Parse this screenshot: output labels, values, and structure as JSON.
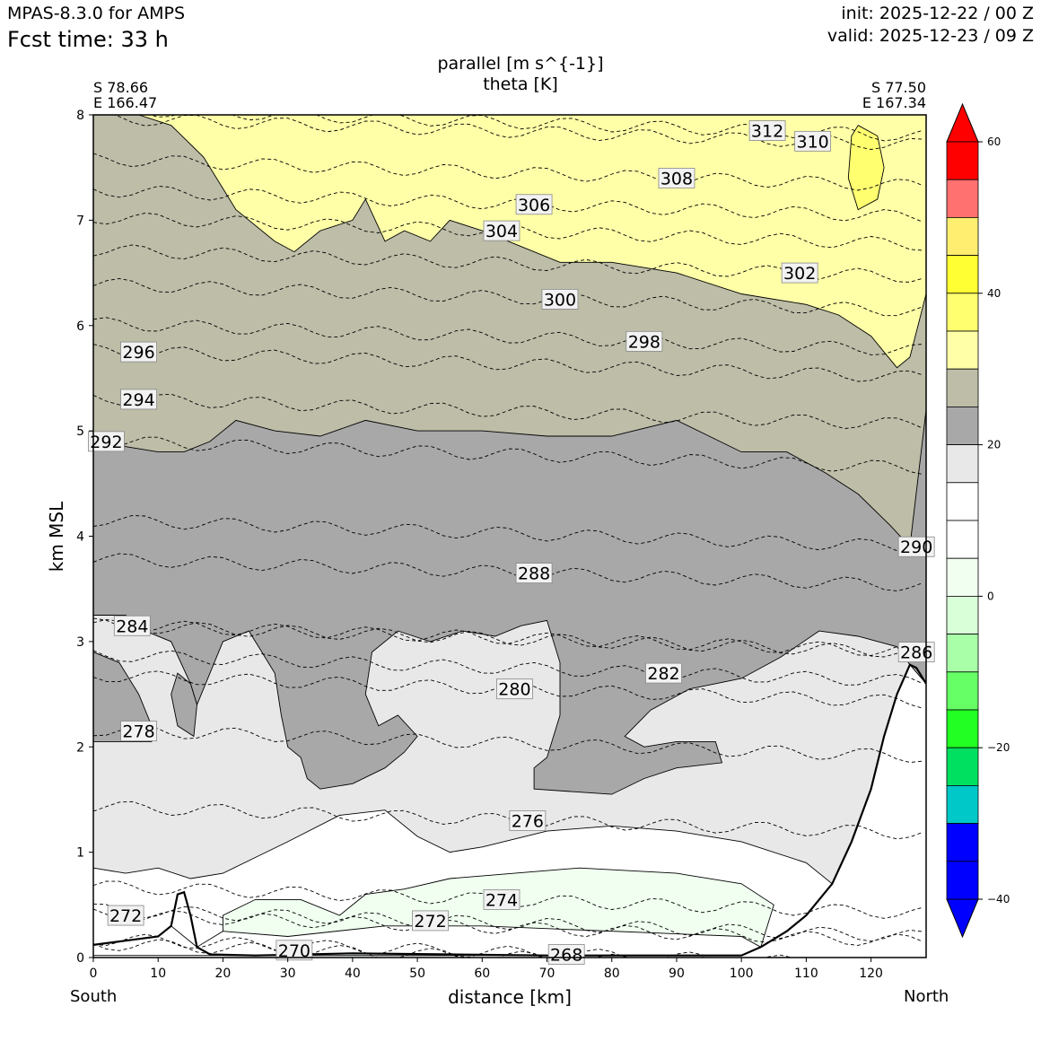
{
  "header": {
    "model": "MPAS-8.3.0 for AMPS",
    "fcst_time": "Fcst time:   33 h",
    "init": "init: 2025-12-22 / 00 Z",
    "valid": "valid: 2025-12-23 / 09 Z"
  },
  "endpoints": {
    "left_lat": "S 78.66",
    "left_lon": "E 166.47",
    "right_lat": "S 77.50",
    "right_lon": "E 167.34",
    "left_dir": "South",
    "right_dir": "North"
  },
  "chart_data": {
    "type": "contour-cross-section",
    "title": "parallel [m s^{-1}]",
    "subtitle": "theta [K]",
    "xlabel": "distance [km]",
    "ylabel": "km MSL",
    "xlim": [
      0,
      128.5
    ],
    "ylim": [
      0,
      8
    ],
    "x_ticks": [
      0,
      10,
      20,
      30,
      40,
      50,
      60,
      70,
      80,
      90,
      100,
      110,
      120
    ],
    "y_ticks": [
      0,
      1,
      2,
      3,
      4,
      5,
      6,
      7,
      8
    ],
    "terrain": [
      [
        0,
        0.12
      ],
      [
        5,
        0.16
      ],
      [
        10,
        0.2
      ],
      [
        12,
        0.3
      ],
      [
        13,
        0.6
      ],
      [
        14,
        0.62
      ],
      [
        15,
        0.4
      ],
      [
        16,
        0.1
      ],
      [
        18,
        0.03
      ],
      [
        25,
        0.02
      ],
      [
        40,
        0.04
      ],
      [
        55,
        0.03
      ],
      [
        70,
        0.02
      ],
      [
        90,
        0.02
      ],
      [
        100,
        0.02
      ],
      [
        103,
        0.1
      ],
      [
        107,
        0.25
      ],
      [
        110,
        0.4
      ],
      [
        114,
        0.7
      ],
      [
        117,
        1.1
      ],
      [
        120,
        1.6
      ],
      [
        122,
        2.1
      ],
      [
        124,
        2.5
      ],
      [
        126,
        2.78
      ],
      [
        127,
        2.75
      ],
      [
        128.5,
        2.6
      ]
    ],
    "colorbar": {
      "ticks": [
        60,
        40,
        20,
        0,
        -20,
        -40
      ],
      "levels": [
        {
          "color": "#ff0000"
        },
        {
          "color": "#ff7070"
        },
        {
          "color": "#ffee70"
        },
        {
          "color": "#ffff33"
        },
        {
          "color": "#ffff70"
        },
        {
          "color": "#ffffa8"
        },
        {
          "color": "#bdbda8"
        },
        {
          "color": "#a8a8a8"
        },
        {
          "color": "#e8e8e8"
        },
        {
          "color": "#ffffff"
        },
        {
          "color": "#ffffff"
        },
        {
          "color": "#f0fff0"
        },
        {
          "color": "#d8ffd8"
        },
        {
          "color": "#a8ffa8"
        },
        {
          "color": "#66ff66"
        },
        {
          "color": "#22ff22"
        },
        {
          "color": "#00e060"
        },
        {
          "color": "#00c8c8"
        },
        {
          "color": "#0000ff"
        },
        {
          "color": "#0000ff"
        }
      ],
      "over_color": "#ff0000",
      "under_color": "#0000ff"
    },
    "wind_regions": [
      {
        "color": "#bdbda8",
        "points": [
          [
            0,
            8
          ],
          [
            128.5,
            8
          ],
          [
            128.5,
            3
          ],
          [
            0,
            3
          ]
        ]
      },
      {
        "color": "#ffffa8",
        "points": [
          [
            7,
            8
          ],
          [
            128.5,
            8
          ],
          [
            128.5,
            6.3
          ],
          [
            126,
            5.7
          ],
          [
            124,
            5.6
          ],
          [
            120,
            5.9
          ],
          [
            115,
            6.1
          ],
          [
            110,
            6.2
          ],
          [
            100,
            6.3
          ],
          [
            90,
            6.5
          ],
          [
            80,
            6.6
          ],
          [
            72,
            6.6
          ],
          [
            60,
            6.9
          ],
          [
            55,
            7.0
          ],
          [
            52,
            6.8
          ],
          [
            48,
            6.9
          ],
          [
            45,
            6.8
          ],
          [
            42,
            7.2
          ],
          [
            40,
            7.0
          ],
          [
            35,
            6.9
          ],
          [
            31,
            6.7
          ],
          [
            28,
            6.8
          ],
          [
            22,
            7.1
          ],
          [
            17,
            7.6
          ],
          [
            12,
            7.9
          ]
        ]
      },
      {
        "color": "#ffff70",
        "points": [
          [
            118,
            7.9
          ],
          [
            121,
            7.8
          ],
          [
            122,
            7.5
          ],
          [
            121,
            7.2
          ],
          [
            118,
            7.1
          ],
          [
            116.5,
            7.4
          ],
          [
            117,
            7.8
          ]
        ]
      },
      {
        "color": "#a8a8a8",
        "points": [
          [
            0,
            4.95
          ],
          [
            5,
            4.85
          ],
          [
            10,
            4.8
          ],
          [
            14,
            4.8
          ],
          [
            18,
            4.9
          ],
          [
            22,
            5.1
          ],
          [
            28,
            5.0
          ],
          [
            35,
            4.95
          ],
          [
            42,
            5.1
          ],
          [
            50,
            5.0
          ],
          [
            60,
            5.0
          ],
          [
            70,
            4.95
          ],
          [
            80,
            4.95
          ],
          [
            90,
            5.1
          ],
          [
            100,
            4.8
          ],
          [
            107,
            4.8
          ],
          [
            113,
            4.6
          ],
          [
            118,
            4.4
          ],
          [
            123,
            4.1
          ],
          [
            126,
            3.9
          ],
          [
            128.5,
            5.2
          ],
          [
            128.5,
            2.6
          ],
          [
            126,
            2.78
          ],
          [
            124,
            2.5
          ],
          [
            122,
            2.1
          ],
          [
            120,
            1.6
          ],
          [
            117,
            1.1
          ],
          [
            114,
            0.7
          ],
          [
            110,
            0.4
          ],
          [
            107,
            0.25
          ],
          [
            103,
            0.1
          ],
          [
            0,
            0.1
          ]
        ]
      },
      {
        "color": "#e8e8e8",
        "points": [
          [
            0,
            3.25
          ],
          [
            5,
            3.25
          ],
          [
            8,
            3.1
          ],
          [
            12,
            3.0
          ],
          [
            15,
            2.6
          ],
          [
            16,
            2.4
          ],
          [
            18,
            2.7
          ],
          [
            20,
            3.0
          ],
          [
            24,
            3.1
          ],
          [
            26,
            2.9
          ],
          [
            28,
            2.7
          ],
          [
            29,
            2.3
          ],
          [
            30,
            2.0
          ],
          [
            32,
            1.9
          ],
          [
            33,
            1.7
          ],
          [
            35,
            1.6
          ],
          [
            40,
            1.65
          ],
          [
            45,
            1.8
          ],
          [
            48,
            1.95
          ],
          [
            50,
            2.1
          ],
          [
            47,
            2.3
          ],
          [
            44,
            2.2
          ],
          [
            42,
            2.5
          ],
          [
            43,
            2.9
          ],
          [
            47,
            3.1
          ],
          [
            52,
            3.0
          ],
          [
            57,
            3.1
          ],
          [
            62,
            3.05
          ],
          [
            66,
            3.15
          ],
          [
            70,
            3.2
          ],
          [
            72,
            2.8
          ],
          [
            72,
            2.3
          ],
          [
            70,
            1.9
          ],
          [
            68,
            1.8
          ],
          [
            68,
            1.6
          ],
          [
            80,
            1.55
          ],
          [
            85,
            1.7
          ],
          [
            90,
            1.8
          ],
          [
            97,
            1.85
          ],
          [
            96,
            2.05
          ],
          [
            90,
            2.05
          ],
          [
            85,
            2.0
          ],
          [
            82,
            2.1
          ],
          [
            86,
            2.35
          ],
          [
            92,
            2.55
          ],
          [
            100,
            2.65
          ],
          [
            106,
            2.85
          ],
          [
            112,
            3.1
          ],
          [
            118,
            3.05
          ],
          [
            124,
            2.95
          ],
          [
            126,
            2.78
          ],
          [
            124,
            2.5
          ],
          [
            122,
            2.1
          ],
          [
            120,
            1.6
          ],
          [
            117,
            1.1
          ],
          [
            114,
            0.7
          ],
          [
            110,
            0.4
          ],
          [
            107,
            0.25
          ],
          [
            103,
            0.1
          ],
          [
            0,
            0.1
          ]
        ]
      },
      {
        "color": "#a8a8a8",
        "points": [
          [
            0,
            2.9
          ],
          [
            4,
            2.8
          ],
          [
            7,
            2.5
          ],
          [
            9,
            2.2
          ],
          [
            9,
            2.05
          ],
          [
            0,
            2.05
          ]
        ]
      },
      {
        "color": "#a8a8a8",
        "points": [
          [
            15,
            2.6
          ],
          [
            16,
            2.4
          ],
          [
            15.5,
            2.1
          ],
          [
            13,
            2.2
          ],
          [
            12,
            2.5
          ],
          [
            13,
            2.7
          ]
        ]
      },
      {
        "color": "#ffffff",
        "points": [
          [
            0,
            0.85
          ],
          [
            5,
            0.8
          ],
          [
            10,
            0.85
          ],
          [
            15,
            0.75
          ],
          [
            20,
            0.8
          ],
          [
            25,
            0.95
          ],
          [
            30,
            1.1
          ],
          [
            38,
            1.35
          ],
          [
            45,
            1.4
          ],
          [
            50,
            1.15
          ],
          [
            55,
            1.0
          ],
          [
            60,
            1.05
          ],
          [
            70,
            1.2
          ],
          [
            80,
            1.25
          ],
          [
            90,
            1.2
          ],
          [
            100,
            1.1
          ],
          [
            110,
            0.9
          ],
          [
            114,
            0.7
          ],
          [
            110,
            0.4
          ],
          [
            107,
            0.25
          ],
          [
            103,
            0.1
          ],
          [
            100,
            0.02
          ],
          [
            0,
            0.02
          ]
        ]
      },
      {
        "color": "#f0fff0",
        "points": [
          [
            20,
            0.4
          ],
          [
            25,
            0.55
          ],
          [
            32,
            0.55
          ],
          [
            38,
            0.4
          ],
          [
            42,
            0.6
          ],
          [
            48,
            0.65
          ],
          [
            55,
            0.75
          ],
          [
            65,
            0.8
          ],
          [
            75,
            0.85
          ],
          [
            90,
            0.8
          ],
          [
            100,
            0.7
          ],
          [
            105,
            0.5
          ],
          [
            103,
            0.1
          ],
          [
            100,
            0.02
          ],
          [
            20,
            0.02
          ]
        ]
      },
      {
        "color": "#ffffff",
        "points": [
          [
            16,
            0.1
          ],
          [
            18,
            0.03
          ],
          [
            25,
            0.02
          ],
          [
            40,
            0.04
          ],
          [
            55,
            0.03
          ],
          [
            70,
            0.02
          ],
          [
            90,
            0.02
          ],
          [
            100,
            0.02
          ],
          [
            103,
            0.1
          ],
          [
            100,
            0.2
          ],
          [
            60,
            0.3
          ],
          [
            45,
            0.3
          ],
          [
            30,
            0.2
          ],
          [
            20,
            0.25
          ]
        ]
      },
      {
        "color": "#ffffff",
        "points": [
          [
            12,
            0.3
          ],
          [
            13,
            0.6
          ],
          [
            14,
            0.62
          ],
          [
            15,
            0.4
          ],
          [
            16,
            0.1
          ]
        ]
      }
    ],
    "theta_contours": [
      {
        "value": "312",
        "label_x": 104,
        "label_y": 7.85
      },
      {
        "value": "310",
        "label_x": 111,
        "label_y": 7.75
      },
      {
        "value": "308",
        "label_x": 90,
        "label_y": 7.4
      },
      {
        "value": "306",
        "label_x": 68,
        "label_y": 7.15
      },
      {
        "value": "304",
        "label_x": 63,
        "label_y": 6.9
      },
      {
        "value": "302",
        "label_x": 109,
        "label_y": 6.5
      },
      {
        "value": "300",
        "label_x": 72,
        "label_y": 6.25
      },
      {
        "value": "298",
        "label_x": 85,
        "label_y": 5.85
      },
      {
        "value": "296",
        "label_x": 7,
        "label_y": 5.75
      },
      {
        "value": "294",
        "label_x": 7,
        "label_y": 5.3
      },
      {
        "value": "292",
        "label_x": 2,
        "label_y": 4.9
      },
      {
        "value": "290",
        "label_x": 127,
        "label_y": 3.9
      },
      {
        "value": "288",
        "label_x": 68,
        "label_y": 3.65
      },
      {
        "value": "286",
        "label_x": 127,
        "label_y": 2.9
      },
      {
        "value": "284",
        "label_x": 6,
        "label_y": 3.15
      },
      {
        "value": "282",
        "label_x": 88,
        "label_y": 2.7
      },
      {
        "value": "280",
        "label_x": 65,
        "label_y": 2.55
      },
      {
        "value": "278",
        "label_x": 7,
        "label_y": 2.15
      },
      {
        "value": "276",
        "label_x": 67,
        "label_y": 1.3
      },
      {
        "value": "274",
        "label_x": 63,
        "label_y": 0.55
      },
      {
        "value": "272",
        "label_x": 52,
        "label_y": 0.35
      },
      {
        "value": "272",
        "label_x": 5,
        "label_y": 0.4
      },
      {
        "value": "270",
        "label_x": 31,
        "label_y": 0.07
      },
      {
        "value": "268",
        "label_x": 73,
        "label_y": 0.03
      }
    ]
  }
}
